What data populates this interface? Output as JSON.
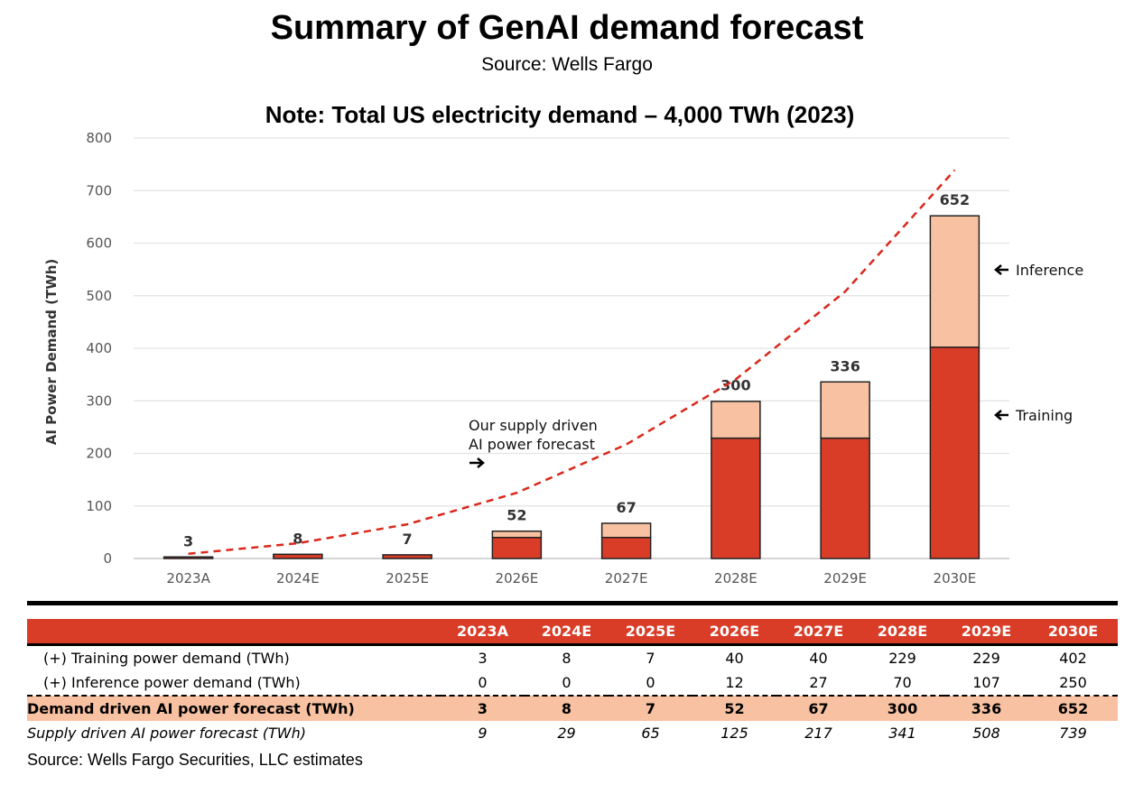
{
  "header": {
    "title": "Summary of GenAI demand forecast",
    "subtitle": "Source: Wells Fargo"
  },
  "chart_data": {
    "type": "bar",
    "title": "Note: Total US electricity demand – 4,000 TWh (2023)",
    "xlabel": "",
    "ylabel": "AI Power Demand (TWh)",
    "ylim": [
      0,
      800
    ],
    "yticks": [
      0,
      100,
      200,
      300,
      400,
      500,
      600,
      700,
      800
    ],
    "grid": true,
    "stacked": true,
    "categories": [
      "2023A",
      "2024E",
      "2025E",
      "2026E",
      "2027E",
      "2028E",
      "2029E",
      "2030E"
    ],
    "series": [
      {
        "name": "Training",
        "values": [
          3,
          8,
          7,
          40,
          40,
          229,
          229,
          402
        ],
        "color": "#d93d28"
      },
      {
        "name": "Inference",
        "values": [
          0,
          0,
          0,
          12,
          27,
          70,
          107,
          250
        ],
        "color": "#f8c2a2"
      }
    ],
    "totals": [
      3,
      8,
      7,
      52,
      67,
      300,
      336,
      652
    ],
    "line": {
      "name": "Our supply driven AI power forecast",
      "values": [
        9,
        29,
        65,
        125,
        217,
        341,
        508,
        739
      ],
      "style": "dashed",
      "color": "#d9281c"
    },
    "annotations": {
      "supply_line1": "Our supply driven",
      "supply_line2": "AI power forecast",
      "inference": "Inference",
      "training": "Training"
    }
  },
  "table": {
    "rows": [
      {
        "label": "(+) Training power demand (TWh)",
        "values": [
          "3",
          "8",
          "7",
          "40",
          "40",
          "229",
          "229",
          "402"
        ]
      },
      {
        "label": "(+) Inference power demand (TWh)",
        "values": [
          "0",
          "0",
          "0",
          "12",
          "27",
          "70",
          "107",
          "250"
        ]
      },
      {
        "label": "Demand driven AI power forecast (TWh)",
        "values": [
          "3",
          "8",
          "7",
          "52",
          "67",
          "300",
          "336",
          "652"
        ]
      },
      {
        "label": "Supply driven AI power forecast (TWh)",
        "values": [
          "9",
          "29",
          "65",
          "125",
          "217",
          "341",
          "508",
          "739"
        ]
      }
    ]
  },
  "footer": {
    "source": "Source: Wells Fargo Securities, LLC estimates"
  }
}
